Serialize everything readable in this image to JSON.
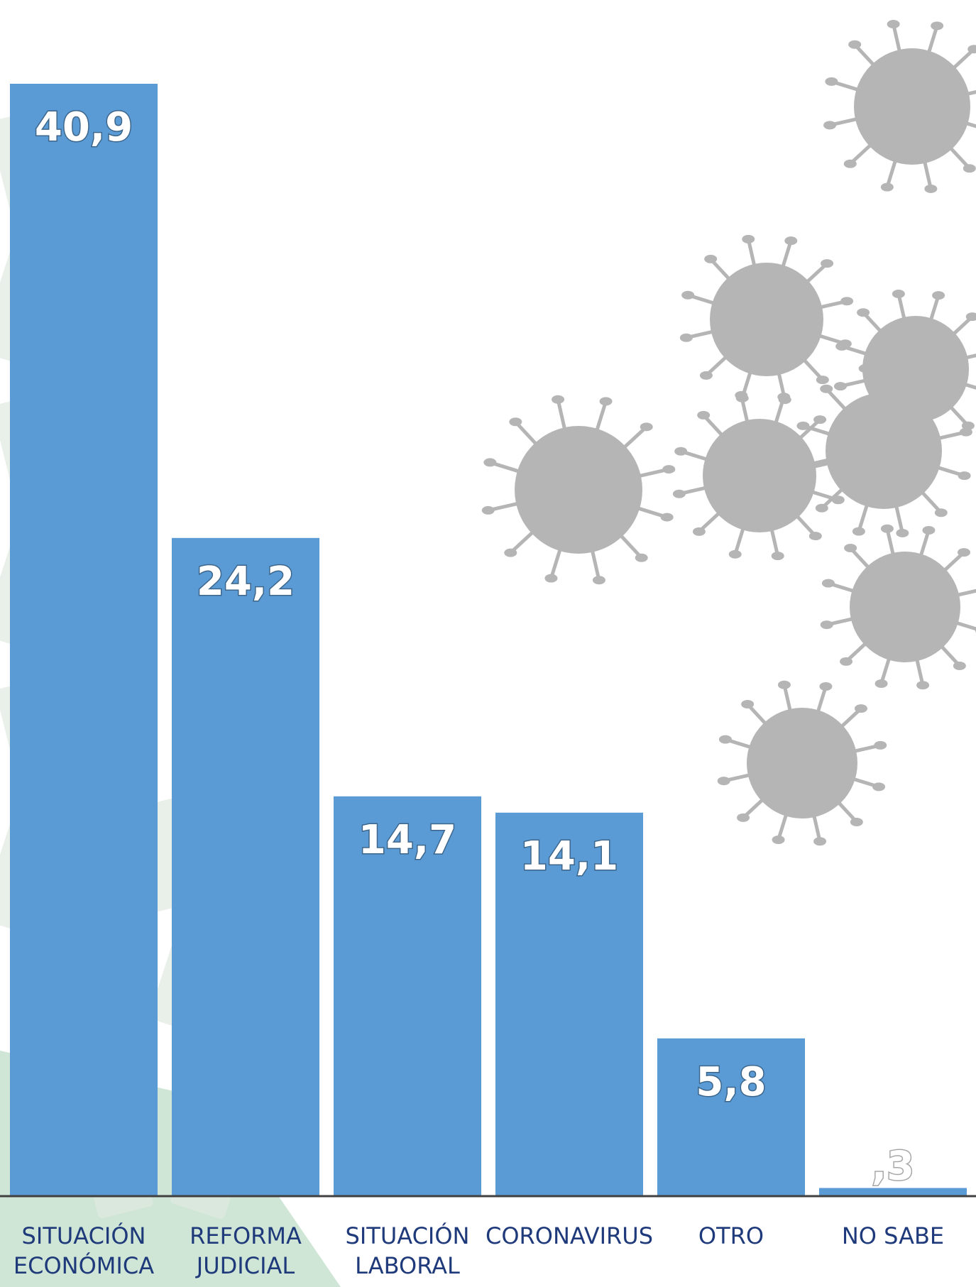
{
  "chart_data": {
    "type": "bar",
    "categories": [
      [
        "SITUACIÓN",
        "ECONÓMICA"
      ],
      [
        "REFORMA",
        "JUDICIAL"
      ],
      [
        "SITUACIÓN",
        "LABORAL"
      ],
      [
        "CORONAVIRUS"
      ],
      [
        "OTRO"
      ],
      [
        "NO SABE"
      ]
    ],
    "values": [
      40.9,
      24.2,
      14.7,
      14.1,
      5.8,
      0.3
    ],
    "value_labels": [
      "40,9",
      "24,2",
      "14,7",
      "14,1",
      "5,8",
      ",3"
    ],
    "ylim": [
      0,
      45
    ],
    "grid": false,
    "legend": "none",
    "colors": {
      "bar": "#5b9bd5",
      "value_text": "#ffffff",
      "tick_text": "#1f3a7a",
      "axis": "#404040",
      "virus": "#b5b5b5",
      "money_tint": "#dfe8df",
      "green_shape": "#cfe6d6"
    },
    "background_icons": [
      "virus-icon",
      "money-bills-icon"
    ]
  }
}
